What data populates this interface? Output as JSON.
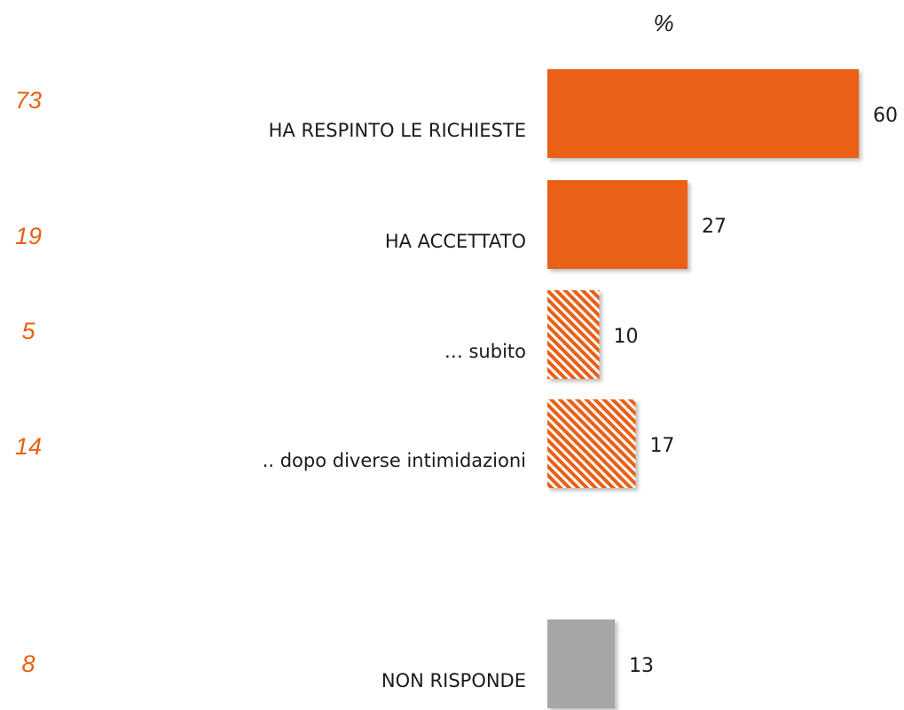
{
  "chart_data": {
    "type": "bar",
    "orientation": "horizontal",
    "title": "%",
    "categories": [
      "HA RESPINTO LE RICHIESTE",
      "HA ACCETTATO",
      "… subito",
      ".. dopo diverse intimidazioni",
      "NON RISPONDE"
    ],
    "values": [
      60,
      27,
      10,
      17,
      13
    ],
    "compare_values": [
      73,
      19,
      5,
      14,
      8
    ],
    "colors": [
      "#e96012",
      "#e96012",
      "#e96012",
      "#e96012",
      "#a6a6a6"
    ],
    "styles": [
      "solid",
      "solid",
      "hatched",
      "hatched",
      "solid"
    ],
    "compare_color": "#e96012"
  }
}
